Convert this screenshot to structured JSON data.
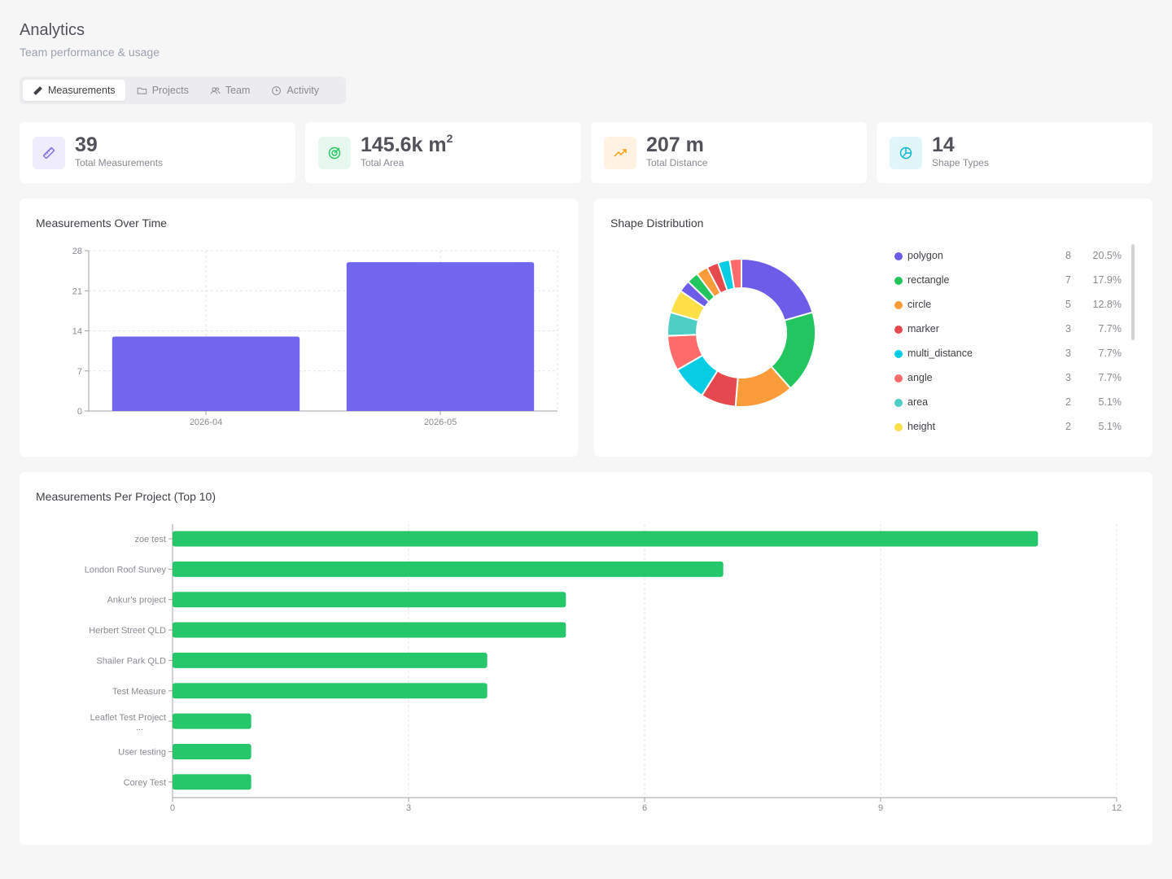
{
  "page": {
    "title": "Analytics",
    "subtitle": "Team performance & usage"
  },
  "tabs": [
    {
      "label": "Measurements",
      "icon": "ruler-icon",
      "active": true
    },
    {
      "label": "Projects",
      "icon": "folder-icon",
      "active": false
    },
    {
      "label": "Team",
      "icon": "users-icon",
      "active": false
    },
    {
      "label": "Activity",
      "icon": "clock-icon",
      "active": false
    }
  ],
  "stats": [
    {
      "value": "39",
      "unit": "",
      "label": "Total Measurements",
      "icon": "ruler-icon",
      "color": "#7a6cf0",
      "bg": "#eeecfd"
    },
    {
      "value": "145.6k m",
      "unit": "2",
      "label": "Total Area",
      "icon": "target-icon",
      "color": "#22c55e",
      "bg": "#e7f8ee"
    },
    {
      "value": "207 m",
      "unit": "",
      "label": "Total Distance",
      "icon": "trending-up-icon",
      "color": "#f59e0b",
      "bg": "#fef3e2"
    },
    {
      "value": "14",
      "unit": "",
      "label": "Shape Types",
      "icon": "pie-chart-icon",
      "color": "#06b6d4",
      "bg": "#e2f6fa"
    }
  ],
  "charts": {
    "over_time": {
      "title": "Measurements Over Time"
    },
    "shape_distribution": {
      "title": "Shape Distribution",
      "legend": [
        {
          "name": "polygon",
          "count": "8",
          "pct": "20.5%",
          "color": "#6c5ce7"
        },
        {
          "name": "rectangle",
          "count": "7",
          "pct": "17.9%",
          "color": "#22c55e"
        },
        {
          "name": "circle",
          "count": "5",
          "pct": "12.8%",
          "color": "#fb9c3a"
        },
        {
          "name": "marker",
          "count": "3",
          "pct": "7.7%",
          "color": "#e5484d"
        },
        {
          "name": "multi_distance",
          "count": "3",
          "pct": "7.7%",
          "color": "#06cde3"
        },
        {
          "name": "angle",
          "count": "3",
          "pct": "7.7%",
          "color": "#ff6b6b"
        },
        {
          "name": "area",
          "count": "2",
          "pct": "5.1%",
          "color": "#4ecdc4"
        },
        {
          "name": "height",
          "count": "2",
          "pct": "5.1%",
          "color": "#fde047"
        }
      ]
    },
    "per_project": {
      "title": "Measurements Per Project (Top 10)"
    }
  },
  "chart_data": [
    {
      "type": "bar",
      "title": "Measurements Over Time",
      "categories": [
        "2026-04",
        "2026-05"
      ],
      "values": [
        13,
        26
      ],
      "ylim": [
        0,
        28
      ],
      "yticks": [
        0,
        7,
        14,
        21,
        28
      ],
      "grid": true,
      "color": "#7366ee"
    },
    {
      "type": "pie",
      "title": "Shape Distribution",
      "values": [
        8,
        7,
        5,
        3,
        3,
        3,
        2,
        2,
        1,
        1,
        1,
        1,
        1,
        1
      ],
      "colors": [
        "#6c5ce7",
        "#22c55e",
        "#fb9c3a",
        "#e5484d",
        "#06cde3",
        "#ff6b6b",
        "#4ecdc4",
        "#fde047",
        "#6c5ce7",
        "#22c55e",
        "#fb9c3a",
        "#e5484d",
        "#06cde3",
        "#ff6b6b"
      ]
    },
    {
      "type": "bar",
      "orientation": "horizontal",
      "title": "Measurements Per Project (Top 10)",
      "categories": [
        "zoe test",
        "London Roof Survey",
        "Ankur's project",
        "Herbert Street QLD",
        "Shailer Park QLD",
        "Test Measure",
        "Leaflet Test Project ...",
        "User testing",
        "Corey Test"
      ],
      "values": [
        11,
        7,
        5,
        5,
        4,
        4,
        1,
        1,
        1
      ],
      "xlim": [
        0,
        12
      ],
      "xticks": [
        0,
        3,
        6,
        9,
        12
      ],
      "grid": true,
      "color": "#26c66a"
    }
  ]
}
